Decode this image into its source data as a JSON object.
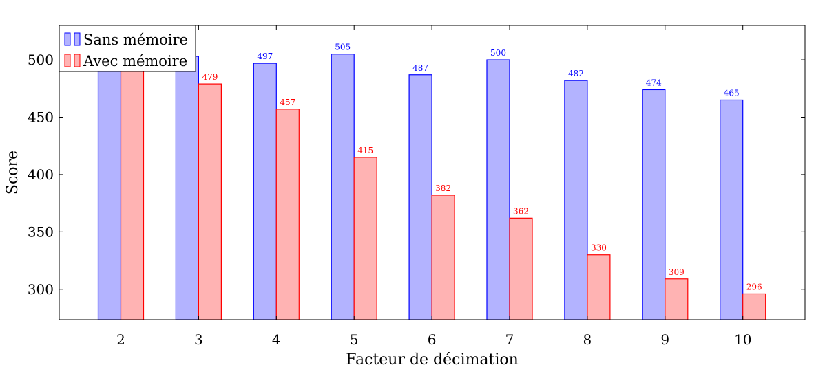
{
  "chart_data": {
    "type": "bar",
    "title": "",
    "xlabel": "Facteur de décimation",
    "ylabel": "Score",
    "categories": [
      "2",
      "3",
      "4",
      "5",
      "6",
      "7",
      "8",
      "9",
      "10"
    ],
    "series": [
      {
        "name": "Sans mémoire",
        "values": [
          500,
          503,
          497,
          505,
          487,
          500,
          482,
          474,
          465
        ],
        "labels": [
          "",
          "",
          "497",
          "505",
          "487",
          "500",
          "482",
          "474",
          "465"
        ],
        "fill": "#b3b3ff",
        "stroke": "#0000ff",
        "label_color": "#0000ff"
      },
      {
        "name": "Avec mémoire",
        "values": [
          499,
          479,
          457,
          415,
          382,
          362,
          330,
          309,
          296
        ],
        "labels": [
          "",
          "479",
          "457",
          "415",
          "382",
          "362",
          "330",
          "309",
          "296"
        ],
        "fill": "#ffb3b3",
        "stroke": "#ff0000",
        "label_color": "#ff0000"
      }
    ],
    "ylim": [
      273.5,
      530
    ],
    "yticks": [
      300,
      350,
      400,
      450,
      500
    ],
    "grid": false,
    "legend_position": "top-left"
  }
}
